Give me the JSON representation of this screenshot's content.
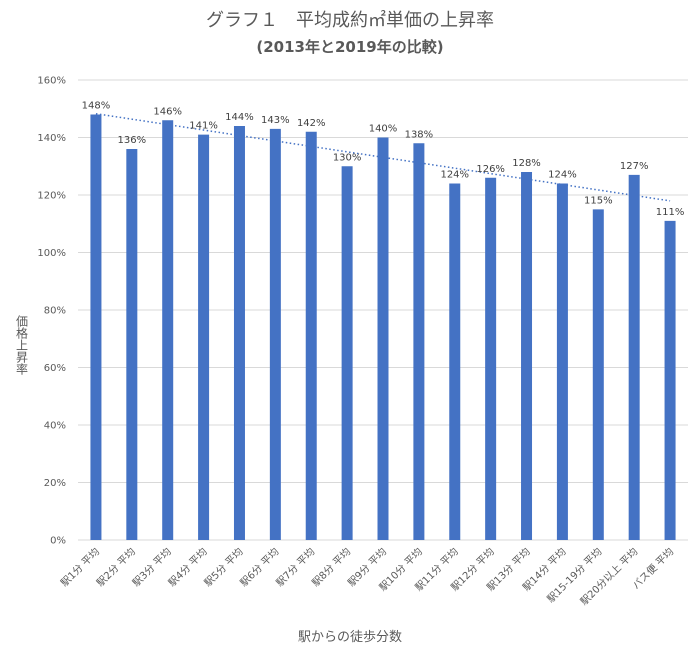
{
  "chart_data": {
    "type": "bar",
    "title": "グラフ１　平均成約㎡単価の上昇率",
    "subtitle": "(2013年と2019年の比較)",
    "xlabel": "駅からの徒歩分数",
    "ylabel": "価格上昇率",
    "categories": [
      "駅1分 平均",
      "駅2分 平均",
      "駅3分 平均",
      "駅4分 平均",
      "駅5分 平均",
      "駅6分 平均",
      "駅7分 平均",
      "駅8分 平均",
      "駅9分 平均",
      "駅10分 平均",
      "駅11分 平均",
      "駅12分 平均",
      "駅13分 平均",
      "駅14分 平均",
      "駅15-19分 平均",
      "駅20分以上 平均",
      "バス便 平均"
    ],
    "values": [
      148,
      136,
      146,
      141,
      144,
      143,
      142,
      130,
      140,
      138,
      124,
      126,
      128,
      124,
      115,
      127,
      111
    ],
    "data_labels": [
      "148%",
      "136%",
      "146%",
      "141%",
      "144%",
      "143%",
      "142%",
      "130%",
      "140%",
      "138%",
      "124%",
      "126%",
      "128%",
      "124%",
      "115%",
      "127%",
      "111%"
    ],
    "ylim": [
      0,
      160
    ],
    "yticks": [
      "0%",
      "20%",
      "40%",
      "60%",
      "80%",
      "100%",
      "120%",
      "140%",
      "160%"
    ],
    "ytick_values": [
      0,
      20,
      40,
      60,
      80,
      100,
      120,
      140,
      160
    ],
    "trendline": {
      "type": "linear",
      "style": "dotted"
    },
    "grid": true,
    "legend": "none",
    "colors": {
      "bar": "#4472C4",
      "trend": "#4472C4",
      "grid": "#D9D9D9"
    }
  }
}
